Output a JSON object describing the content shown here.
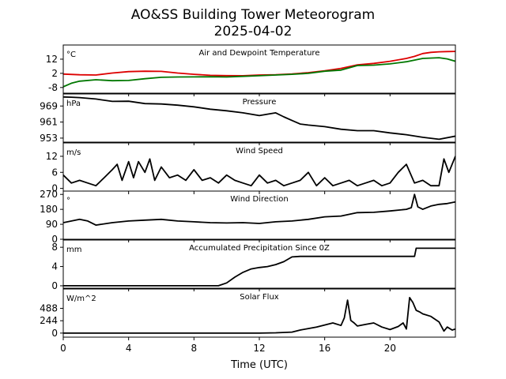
{
  "chart_data": {
    "type": "line",
    "title": "AO&SS Building Tower Meteorogram",
    "subtitle": "2025-04-02",
    "xlabel": "Time (UTC)",
    "xlim": [
      0,
      24
    ],
    "x_ticks": [
      0,
      4,
      8,
      12,
      16,
      20
    ],
    "grid": false,
    "panels": [
      {
        "title": "Air and Dewpoint Temperature",
        "unit": "°C",
        "ylim": [
          -12,
          22
        ],
        "y_ticks": [
          -8,
          2,
          12
        ],
        "series": [
          {
            "color": "#dd0000",
            "x": [
              0,
              1,
              2,
              3,
              4,
              5,
              6,
              7,
              8,
              9,
              10,
              11,
              12,
              13,
              14,
              15,
              16,
              17,
              18,
              19,
              20,
              21,
              21.5,
              22,
              22.5,
              23,
              23.5,
              24
            ],
            "values": [
              1.5,
              1.0,
              0.8,
              2.2,
              3.2,
              3.5,
              3.4,
              2.2,
              1.3,
              0.6,
              0.4,
              0.3,
              0.8,
              1.0,
              1.6,
              2.5,
              3.8,
              5.5,
              8.0,
              9.0,
              10.5,
              12.5,
              14.0,
              16.0,
              16.8,
              17.2,
              17.4,
              17.5
            ]
          },
          {
            "color": "#007700",
            "x": [
              0,
              0.5,
              1,
              2,
              3,
              4,
              5,
              6,
              7,
              8,
              9,
              10,
              11,
              12,
              13,
              14,
              15,
              16,
              17,
              18,
              19,
              20,
              21,
              22,
              23,
              23.5,
              24
            ],
            "values": [
              -7.5,
              -5.0,
              -3.5,
              -2.5,
              -3.2,
              -3.0,
              -1.8,
              -0.8,
              -0.6,
              -0.5,
              -0.4,
              -0.6,
              -0.1,
              0.3,
              0.8,
              1.3,
              2.0,
              3.5,
              4.3,
              7.5,
              7.8,
              8.7,
              10.2,
              12.5,
              13.0,
              12.2,
              10.5
            ]
          }
        ]
      },
      {
        "title": "Pressure",
        "unit": "hPa",
        "ylim": [
          951,
          975
        ],
        "y_ticks": [
          953,
          961,
          969
        ],
        "series": [
          {
            "color": "#000000",
            "x": [
              0,
              0.5,
              1,
              2,
              3,
              4,
              5,
              6,
              7,
              8,
              9,
              10,
              11,
              12,
              13,
              13.5,
              14,
              14.5,
              15,
              16,
              17,
              18,
              19,
              20,
              21,
              22,
              23,
              24
            ],
            "values": [
              973.5,
              973.4,
              973.2,
              972.5,
              971.3,
              971.4,
              970.2,
              970.0,
              969.4,
              968.6,
              967.4,
              966.6,
              965.6,
              964.2,
              965.6,
              963.6,
              961.8,
              960.0,
              959.5,
              958.7,
              957.4,
              956.7,
              956.7,
              955.6,
              954.7,
              953.4,
              952.4,
              954.0
            ]
          }
        ]
      },
      {
        "title": "Wind Speed",
        "unit": "m/s",
        "ylim": [
          -1,
          17
        ],
        "y_ticks": [
          0,
          6,
          12
        ],
        "series": [
          {
            "color": "#000000",
            "x": [
              0,
              0.5,
              1,
              1.5,
              2,
              2.5,
              3,
              3.3,
              3.6,
              4,
              4.3,
              4.6,
              5,
              5.3,
              5.6,
              6,
              6.5,
              7,
              7.5,
              8,
              8.5,
              9,
              9.5,
              10,
              10.5,
              11,
              11.5,
              12,
              12.5,
              13,
              13.5,
              14,
              14.5,
              15,
              15.5,
              16,
              16.5,
              17,
              17.5,
              18,
              18.5,
              19,
              19.5,
              20,
              20.5,
              21,
              21.5,
              22,
              22.5,
              23,
              23.3,
              23.6,
              24
            ],
            "values": [
              5,
              2,
              3,
              2,
              1,
              4,
              7,
              9,
              3,
              10,
              4,
              10,
              6,
              11,
              3,
              8,
              4,
              5,
              3,
              7,
              3,
              4,
              2,
              5,
              3,
              2,
              1,
              5,
              2,
              3,
              1,
              2,
              3,
              6,
              1,
              4,
              1,
              2,
              3,
              1,
              2,
              3,
              1,
              2,
              6,
              9,
              2,
              3,
              1,
              1,
              11,
              6,
              12
            ]
          }
        ]
      },
      {
        "title": "Wind Direction",
        "unit": "°",
        "ylim": [
          0,
          290
        ],
        "y_ticks": [
          0,
          90,
          180,
          270
        ],
        "series": [
          {
            "color": "#000000",
            "x": [
              0,
              1,
              1.5,
              2,
              3,
              4,
              5,
              6,
              7,
              8,
              9,
              10,
              11,
              12,
              13,
              14,
              15,
              16,
              17,
              18,
              19,
              20,
              21,
              21.3,
              21.5,
              21.7,
              22,
              22.5,
              23,
              23.5,
              24
            ],
            "values": [
              100,
              120,
              110,
              85,
              100,
              110,
              115,
              120,
              110,
              105,
              100,
              98,
              100,
              95,
              105,
              110,
              120,
              135,
              140,
              160,
              162,
              170,
              180,
              190,
              270,
              195,
              180,
              200,
              210,
              215,
              225
            ]
          }
        ]
      },
      {
        "title": "Accumulated Precipitation Since 0Z",
        "unit": "mm",
        "ylim": [
          -0.5,
          9.5
        ],
        "y_ticks": [
          0,
          4,
          8
        ],
        "series": [
          {
            "color": "#000000",
            "x": [
              0,
              9.5,
              10,
              10.5,
              11,
              11.5,
              12,
              12.5,
              13,
              13.5,
              14,
              14.5,
              15,
              16,
              17,
              18,
              19,
              20,
              21,
              21.5,
              21.6,
              22,
              23,
              24
            ],
            "values": [
              0,
              0,
              0.6,
              1.8,
              2.8,
              3.5,
              3.8,
              4.0,
              4.4,
              5.0,
              6.0,
              6.1,
              6.1,
              6.1,
              6.1,
              6.1,
              6.1,
              6.1,
              6.1,
              6.1,
              7.8,
              7.8,
              7.8,
              7.8
            ]
          }
        ]
      },
      {
        "title": "Solar Flux",
        "unit": "W/m^2",
        "ylim": [
          -80,
          870
        ],
        "y_ticks": [
          0,
          244,
          488
        ],
        "series": [
          {
            "color": "#000000",
            "x": [
              0,
              12,
              13,
              14,
              14.5,
              15,
              15.5,
              16,
              16.5,
              17,
              17.2,
              17.4,
              17.6,
              17.8,
              18,
              18.5,
              19,
              19.5,
              20,
              20.5,
              20.8,
              21,
              21.2,
              21.4,
              21.6,
              21.8,
              22,
              22.5,
              23,
              23.3,
              23.5,
              23.8,
              24
            ],
            "values": [
              0,
              0,
              5,
              20,
              60,
              90,
              120,
              160,
              200,
              150,
              300,
              650,
              250,
              200,
              140,
              170,
              200,
              120,
              70,
              130,
              200,
              80,
              700,
              600,
              450,
              420,
              380,
              330,
              220,
              40,
              120,
              60,
              80
            ]
          }
        ]
      }
    ]
  }
}
